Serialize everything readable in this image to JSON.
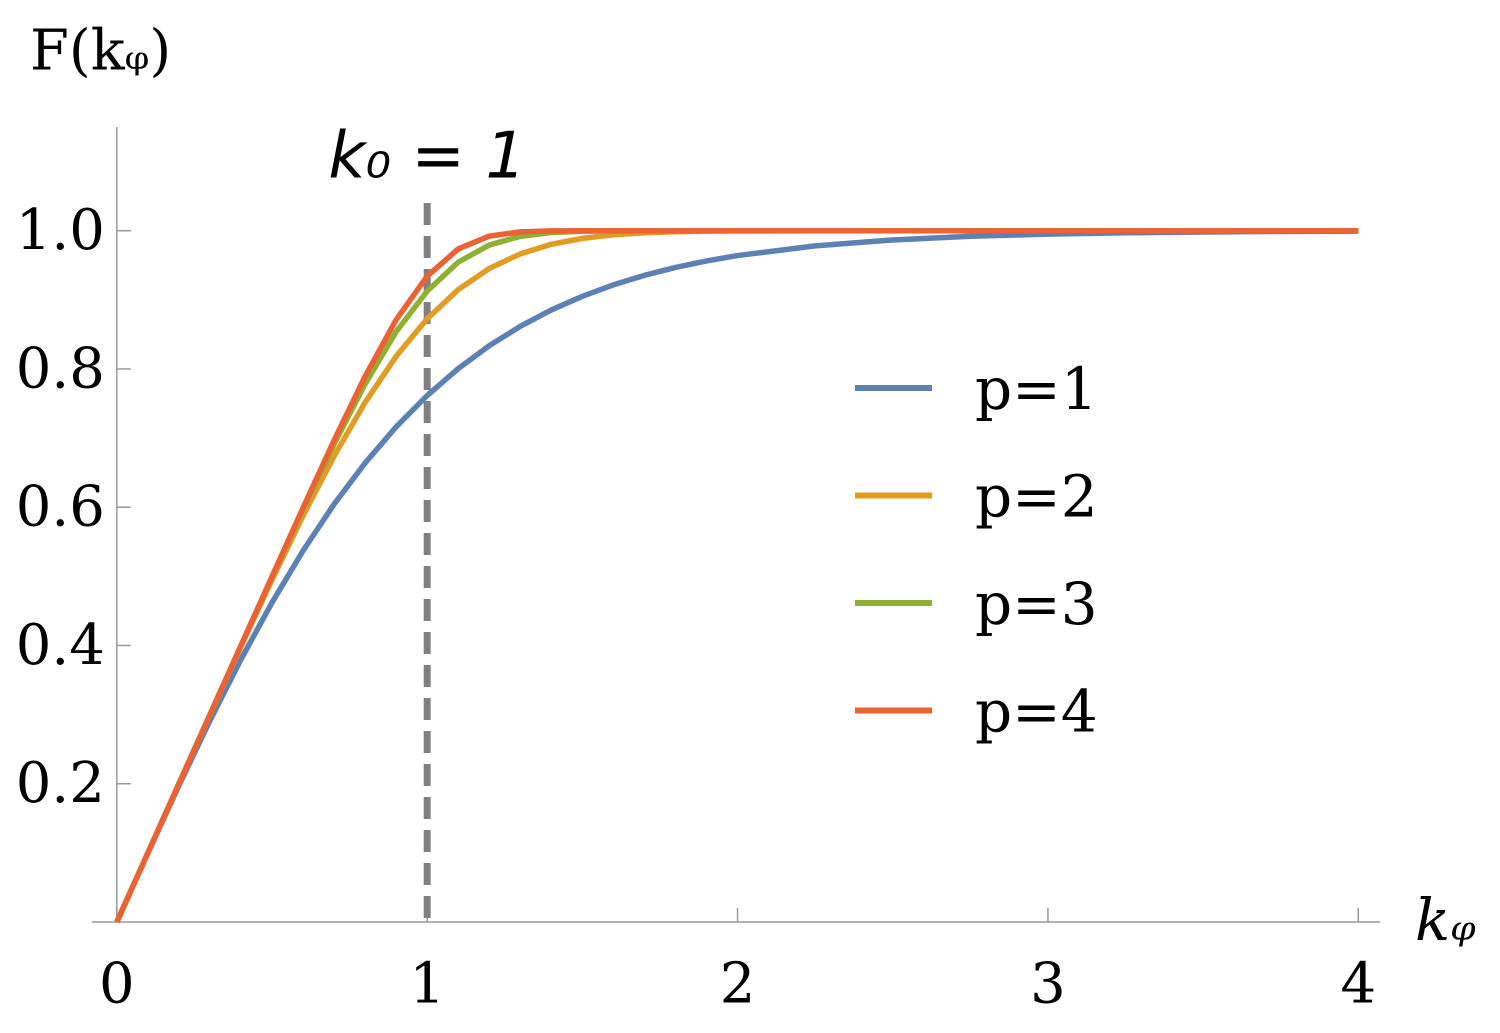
{
  "chart_data": {
    "type": "line",
    "ylabel": "F(kᵩ)",
    "xlabel": "kᵩ",
    "annotation": "k₀ = 1",
    "vline_x": 1,
    "vline_color": "#808080",
    "x": [
      0,
      0.1,
      0.2,
      0.3,
      0.4,
      0.5,
      0.6,
      0.7,
      0.8,
      0.9,
      1.0,
      1.1,
      1.2,
      1.3,
      1.4,
      1.5,
      1.6,
      1.7,
      1.8,
      1.9,
      2.0,
      2.25,
      2.5,
      2.75,
      3.0,
      3.25,
      3.5,
      3.75,
      4.0
    ],
    "series": [
      {
        "name": "p=1",
        "color": "#5e81b5",
        "values": [
          0,
          0.0997,
          0.1974,
          0.2913,
          0.3799,
          0.4621,
          0.537,
          0.6044,
          0.664,
          0.7163,
          0.7616,
          0.8005,
          0.8337,
          0.8617,
          0.8854,
          0.9051,
          0.9217,
          0.9354,
          0.9468,
          0.9562,
          0.964,
          0.978,
          0.9866,
          0.9919,
          0.9951,
          0.997,
          0.9982,
          0.9989,
          0.9993
        ]
      },
      {
        "name": "p=2",
        "color": "#e19c24",
        "values": [
          0,
          0.1,
          0.2,
          0.2997,
          0.3983,
          0.4949,
          0.5875,
          0.6739,
          0.7516,
          0.8183,
          0.8727,
          0.9147,
          0.9454,
          0.9665,
          0.9804,
          0.9889,
          0.9941,
          0.9969,
          0.9985,
          0.9993,
          0.9997,
          1.0,
          1.0,
          1.0,
          1.0,
          1.0,
          1.0,
          1.0,
          1.0
        ]
      },
      {
        "name": "p=3",
        "color": "#8fb032",
        "values": [
          0,
          0.1,
          0.2,
          0.3,
          0.3998,
          0.4991,
          0.5969,
          0.6912,
          0.7783,
          0.8538,
          0.9126,
          0.9545,
          0.9792,
          0.9918,
          0.9973,
          0.9992,
          0.9998,
          1.0,
          1.0,
          1.0,
          1.0,
          1.0,
          1.0,
          1.0,
          1.0,
          1.0,
          1.0,
          1.0,
          1.0
        ]
      },
      {
        "name": "p=4",
        "color": "#eb6235",
        "values": [
          0,
          0.1,
          0.2,
          0.3,
          0.4,
          0.4998,
          0.5992,
          0.6967,
          0.7894,
          0.8711,
          0.9342,
          0.9736,
          0.9922,
          0.9983,
          0.9998,
          1.0,
          1.0,
          1.0,
          1.0,
          1.0,
          1.0,
          1.0,
          1.0,
          1.0,
          1.0,
          1.0,
          1.0,
          1.0,
          1.0
        ]
      }
    ],
    "xlim": [
      -0.08,
      4.07
    ],
    "ylim": [
      0,
      1.15
    ],
    "xticks": [
      0,
      1,
      2,
      3,
      4
    ],
    "yticks": [
      0.2,
      0.4,
      0.6,
      0.8,
      {
        "value": 1,
        "label": "1.0"
      }
    ],
    "grid": false,
    "legend": "right"
  }
}
